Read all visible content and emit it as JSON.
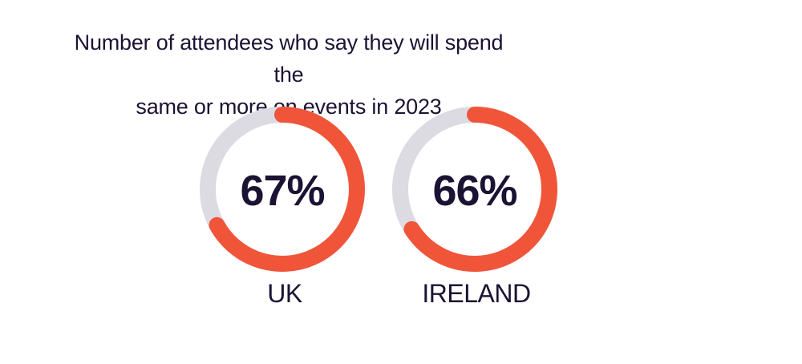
{
  "chart_data": {
    "type": "donut",
    "title_lines": [
      "Number of attendees who say they will spend the",
      "same or more on events in 2023"
    ],
    "charts": [
      {
        "category": "UK",
        "value": 67,
        "display": "67%"
      },
      {
        "category": "IRELAND",
        "value": 66,
        "display": "66%"
      }
    ],
    "max": 100,
    "colors": {
      "fill": "#f0553a",
      "track": "#dcdbe2",
      "text": "#1c1233"
    }
  }
}
